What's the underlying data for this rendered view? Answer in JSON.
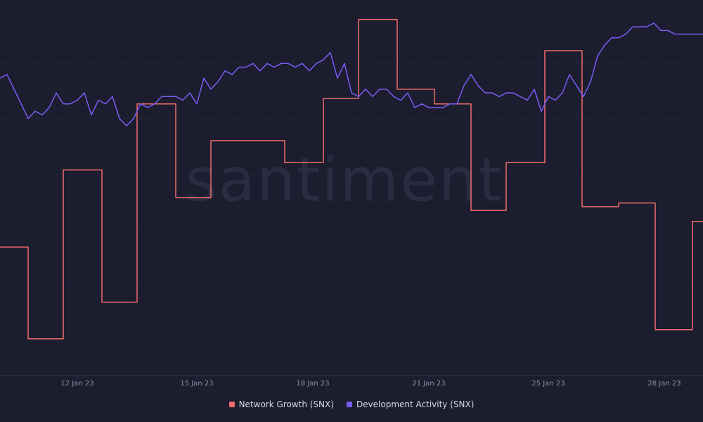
{
  "chart_data": {
    "type": "line",
    "watermark": "santiment",
    "grid": true,
    "x_tick_labels": [
      "12 Jan 23",
      "15 Jan 23",
      "18 Jan 23",
      "21 Jan 23",
      "25 Jan 23",
      "28 Jan 23"
    ],
    "xlim": [
      0,
      100
    ],
    "ylim": [
      0,
      100
    ],
    "series": [
      {
        "name": "Network Growth (SNX)",
        "color": "#ef6c6c",
        "style": "step",
        "x": [
          0,
          4,
          9,
          14.5,
          19.5,
          25,
          30,
          40.5,
          46,
          51,
          56.5,
          61.8,
          67,
          72,
          77.5,
          82.8,
          88,
          93.2,
          98.5,
          100
        ],
        "y": [
          35,
          10,
          56,
          20,
          74,
          48.5,
          64,
          58,
          75.5,
          97,
          78,
          74,
          45,
          58,
          88.5,
          46,
          47,
          12.5,
          42,
          42
        ]
      },
      {
        "name": "Development Activity (SNX)",
        "color": "#7b5cf5",
        "style": "line",
        "x": [
          0,
          1,
          2,
          3,
          4,
          5,
          6,
          7,
          8,
          9,
          10,
          11,
          12,
          13,
          14,
          15,
          16,
          17,
          18,
          19,
          20,
          21,
          22,
          23,
          24,
          25,
          26,
          27,
          28,
          29,
          30,
          31,
          32,
          33,
          34,
          35,
          36,
          37,
          38,
          39,
          40,
          41,
          42,
          43,
          44,
          45,
          46,
          47,
          48,
          49,
          50,
          51,
          52,
          53,
          54,
          55,
          56,
          57,
          58,
          59,
          60,
          61,
          62,
          63,
          64,
          65,
          66,
          67,
          68,
          69,
          70,
          71,
          72,
          73,
          74,
          75,
          76,
          77,
          78,
          79,
          80,
          81,
          82,
          83,
          84,
          85,
          86,
          87,
          88,
          89,
          90,
          91,
          92,
          93,
          94,
          95,
          96,
          97,
          98,
          99,
          100
        ],
        "y": [
          81,
          82,
          78,
          74,
          70,
          72,
          71,
          73,
          77,
          74,
          74,
          75,
          77,
          71,
          75,
          74,
          76,
          70,
          68,
          70,
          74,
          73,
          74,
          76,
          76,
          76,
          75,
          77,
          74,
          81,
          78,
          80,
          83,
          82,
          84,
          84,
          85,
          83,
          85,
          84,
          85,
          85,
          84,
          85,
          83,
          85,
          86,
          88,
          81,
          85,
          77,
          76,
          78,
          76,
          78,
          78,
          76,
          75,
          77,
          73,
          74,
          73,
          73,
          73,
          74,
          74,
          79,
          82,
          79,
          77,
          77,
          76,
          77,
          77,
          76,
          75,
          78,
          72,
          76,
          75,
          77,
          82,
          79,
          76,
          80,
          87,
          90,
          92,
          92,
          93,
          95,
          95,
          95,
          96,
          94,
          94,
          93,
          93,
          93,
          93,
          93
        ]
      }
    ]
  }
}
